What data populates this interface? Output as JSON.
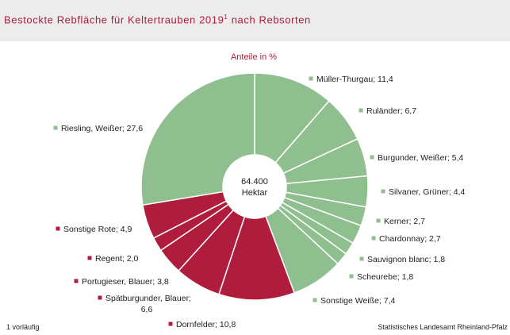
{
  "header": {
    "title": "Bestockte Rebfläche für Keltertrauben 2019",
    "title_footnote": "1",
    "title_suffix": " nach Rebsorten"
  },
  "footer": {
    "note": "1 vorläufig",
    "source": "Statistisches Landesamt Rheinland-Pfalz"
  },
  "colors": {
    "white_wine": "#8fbf8f",
    "red_wine": "#b01c3c",
    "title": "#b01c3c",
    "label_text": "#222222"
  },
  "chart_data": {
    "type": "pie",
    "variant": "donut",
    "subtitle": "Anteile in %",
    "center_value": "64.400",
    "center_unit": "Hektar",
    "slices": [
      {
        "name": "Müller-Thurgau",
        "value": 11.4,
        "label": "Müller-Thurgau; 11,4",
        "group": "white"
      },
      {
        "name": "Ruländer",
        "value": 6.7,
        "label": "Ruländer; 6,7",
        "group": "white"
      },
      {
        "name": "Burgunder, Weißer",
        "value": 5.4,
        "label": "Burgunder, Weißer; 5,4",
        "group": "white"
      },
      {
        "name": "Silvaner, Grüner",
        "value": 4.4,
        "label": "Silvaner, Grüner; 4,4",
        "group": "white"
      },
      {
        "name": "Kerner",
        "value": 2.7,
        "label": "Kerner; 2,7",
        "group": "white"
      },
      {
        "name": "Chardonnay",
        "value": 2.7,
        "label": "Chardonnay; 2,7",
        "group": "white"
      },
      {
        "name": "Sauvignon blanc",
        "value": 1.8,
        "label": "Sauvignon blanc; 1,8",
        "group": "white"
      },
      {
        "name": "Scheurebe",
        "value": 1.8,
        "label": "Scheurebe; 1,8",
        "group": "white"
      },
      {
        "name": "Sonstige Weiße",
        "value": 7.4,
        "label": "Sonstige Weiße; 7,4",
        "group": "white"
      },
      {
        "name": "Dornfelder",
        "value": 10.8,
        "label": "Dornfelder; 10,8",
        "group": "red"
      },
      {
        "name": "Spätburgunder, Blauer",
        "value": 6.6,
        "label": [
          "Spätburgunder, Blauer;",
          "6,6"
        ],
        "group": "red"
      },
      {
        "name": "Portugieser, Blauer",
        "value": 3.8,
        "label": "Portugieser, Blauer; 3,8",
        "group": "red"
      },
      {
        "name": "Regent",
        "value": 2.0,
        "label": "Regent; 2,0",
        "group": "red"
      },
      {
        "name": "Sonstige Rote",
        "value": 4.9,
        "label": "Sonstige Rote; 4,9",
        "group": "red"
      },
      {
        "name": "Riesling, Weißer",
        "value": 27.6,
        "label": "Riesling, Weißer; 27,6",
        "group": "white"
      }
    ]
  }
}
